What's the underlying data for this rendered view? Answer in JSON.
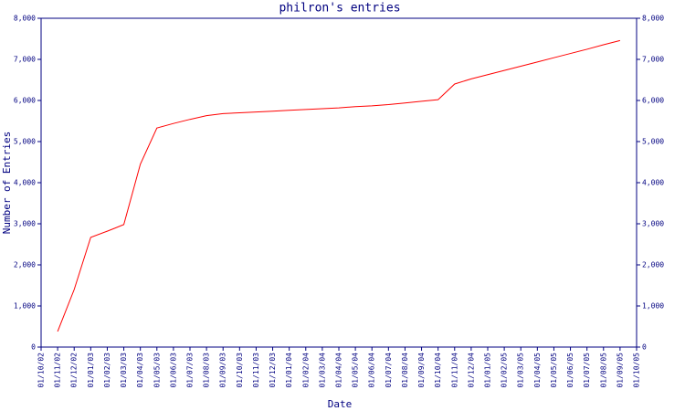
{
  "chart_data": {
    "type": "line",
    "title": "philron's entries",
    "x_label": "Date",
    "y_label": "Number of Entries",
    "categories": [
      "01/10/02",
      "01/11/02",
      "01/12/02",
      "01/01/03",
      "01/02/03",
      "01/03/03",
      "01/04/03",
      "01/05/03",
      "01/06/03",
      "01/07/03",
      "01/08/03",
      "01/09/03",
      "01/10/03",
      "01/11/03",
      "01/12/03",
      "01/01/04",
      "01/02/04",
      "01/03/04",
      "01/04/04",
      "01/05/04",
      "01/06/04",
      "01/07/04",
      "01/08/04",
      "01/09/04",
      "01/10/04",
      "01/11/04",
      "01/12/04",
      "01/01/05",
      "01/02/05",
      "01/03/05",
      "01/04/05",
      "01/05/05",
      "01/06/05",
      "01/07/05",
      "01/08/05",
      "01/09/05",
      "01/10/05"
    ],
    "series": [
      {
        "color": "#ff0000",
        "values": [
          null,
          380,
          1400,
          2670,
          2820,
          2980,
          4450,
          5330,
          5440,
          5540,
          5630,
          5680,
          5700,
          5720,
          5740,
          5760,
          5780,
          5800,
          5820,
          5850,
          5870,
          5900,
          5940,
          5980,
          6020,
          6400,
          6525,
          6628,
          6731,
          6834,
          6937,
          7040,
          7143,
          7246,
          7356,
          7459,
          null
        ]
      }
    ],
    "ylim": [
      0,
      8000
    ],
    "yticks": [
      0,
      {
        "value": 1000,
        "label": "1,000"
      },
      {
        "value": 2000,
        "label": "2,000"
      },
      {
        "value": 3000,
        "label": "3,000"
      },
      {
        "value": 4000,
        "label": "4,000"
      },
      {
        "value": 5000,
        "label": "5,000"
      },
      {
        "value": 6000,
        "label": "6,000"
      },
      {
        "value": 7000,
        "label": "7,000"
      },
      {
        "value": 8000,
        "label": "8,000"
      }
    ],
    "y2lim": [
      0,
      8000
    ],
    "y2ticks": [
      0,
      {
        "value": 1000,
        "label": "1,000"
      },
      {
        "value": 2000,
        "label": "2,000"
      },
      {
        "value": 3000,
        "label": "3,000"
      },
      {
        "value": 4000,
        "label": "4,000"
      },
      {
        "value": 5000,
        "label": "5,000"
      },
      {
        "value": 6000,
        "label": "6,000"
      },
      {
        "value": 7000,
        "label": "7,000"
      },
      {
        "value": 8000,
        "label": "8,000"
      }
    ],
    "axis_color": "#000080"
  }
}
